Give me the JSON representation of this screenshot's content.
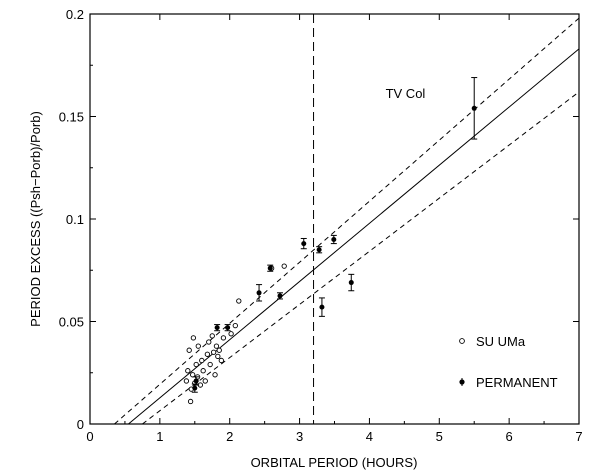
{
  "chart_data": {
    "type": "scatter",
    "xlabel": "ORBITAL PERIOD (HOURS)",
    "ylabel": "PERIOD EXCESS ((Psh−Porb)/Porb)",
    "xlim": [
      0,
      7
    ],
    "ylim": [
      0,
      0.2
    ],
    "x_ticks": [
      0,
      1,
      2,
      3,
      4,
      5,
      6,
      7
    ],
    "y_ticks": [
      0,
      0.05,
      0.1,
      0.15,
      0.2
    ],
    "x_tick_labels": [
      "0",
      "1",
      "2",
      "3",
      "4",
      "5",
      "6",
      "7"
    ],
    "y_tick_labels": [
      "0",
      "0.05",
      "0.1",
      "0.15",
      "0.2"
    ],
    "grid": false,
    "legend_position": "bottom-right",
    "legend": [
      {
        "label": "SU UMa",
        "marker": "open-circle"
      },
      {
        "label": "PERMANENT",
        "marker": "filled-circle"
      }
    ],
    "series": [
      {
        "name": "SU UMa",
        "marker": "open-circle",
        "points": [
          {
            "x": 1.38,
            "y": 0.021
          },
          {
            "x": 1.4,
            "y": 0.026
          },
          {
            "x": 1.42,
            "y": 0.036
          },
          {
            "x": 1.44,
            "y": 0.011
          },
          {
            "x": 1.45,
            "y": 0.017
          },
          {
            "x": 1.47,
            "y": 0.024
          },
          {
            "x": 1.48,
            "y": 0.042
          },
          {
            "x": 1.5,
            "y": 0.02
          },
          {
            "x": 1.52,
            "y": 0.029
          },
          {
            "x": 1.54,
            "y": 0.023
          },
          {
            "x": 1.55,
            "y": 0.038
          },
          {
            "x": 1.58,
            "y": 0.019
          },
          {
            "x": 1.6,
            "y": 0.031
          },
          {
            "x": 1.62,
            "y": 0.026
          },
          {
            "x": 1.65,
            "y": 0.021
          },
          {
            "x": 1.68,
            "y": 0.034
          },
          {
            "x": 1.7,
            "y": 0.04
          },
          {
            "x": 1.72,
            "y": 0.029
          },
          {
            "x": 1.75,
            "y": 0.043
          },
          {
            "x": 1.77,
            "y": 0.035
          },
          {
            "x": 1.79,
            "y": 0.024
          },
          {
            "x": 1.81,
            "y": 0.038
          },
          {
            "x": 1.83,
            "y": 0.033
          },
          {
            "x": 1.85,
            "y": 0.036
          },
          {
            "x": 1.88,
            "y": 0.031
          },
          {
            "x": 1.91,
            "y": 0.042
          },
          {
            "x": 2.02,
            "y": 0.044
          },
          {
            "x": 2.08,
            "y": 0.048
          },
          {
            "x": 2.13,
            "y": 0.06
          },
          {
            "x": 2.78,
            "y": 0.077
          },
          {
            "x": 2.6,
            "y": 0.076
          }
        ]
      },
      {
        "name": "PERMANENT",
        "marker": "filled-circle",
        "points": [
          {
            "x": 1.5,
            "y": 0.0175,
            "err": 0.002
          },
          {
            "x": 1.52,
            "y": 0.021,
            "err": 0.002
          },
          {
            "x": 1.82,
            "y": 0.047,
            "err": 0.0015
          },
          {
            "x": 1.97,
            "y": 0.047,
            "err": 0.0015
          },
          {
            "x": 2.42,
            "y": 0.064,
            "err": 0.004
          },
          {
            "x": 2.58,
            "y": 0.076,
            "err": 0.0015
          },
          {
            "x": 2.72,
            "y": 0.0625,
            "err": 0.0015
          },
          {
            "x": 3.06,
            "y": 0.088,
            "err": 0.0025
          },
          {
            "x": 3.28,
            "y": 0.085,
            "err": 0.0015
          },
          {
            "x": 3.32,
            "y": 0.057,
            "err": 0.0045
          },
          {
            "x": 3.49,
            "y": 0.09,
            "err": 0.002
          },
          {
            "x": 3.74,
            "y": 0.069,
            "err": 0.004
          },
          {
            "x": 5.5,
            "y": 0.154,
            "err": 0.015
          }
        ]
      }
    ],
    "lines": [
      {
        "style": "solid",
        "x": [
          0.55,
          7.0
        ],
        "y": [
          0.0,
          0.183
        ]
      },
      {
        "style": "dashed",
        "x": [
          0.35,
          7.0
        ],
        "y": [
          0.0,
          0.198
        ]
      },
      {
        "style": "dashed",
        "x": [
          0.75,
          7.0
        ],
        "y": [
          0.0,
          0.162
        ]
      }
    ],
    "vline": {
      "x": 3.2,
      "style": "dashed"
    },
    "annotations": [
      {
        "text": "TV Col",
        "x": 4.8,
        "y": 0.159
      }
    ]
  }
}
